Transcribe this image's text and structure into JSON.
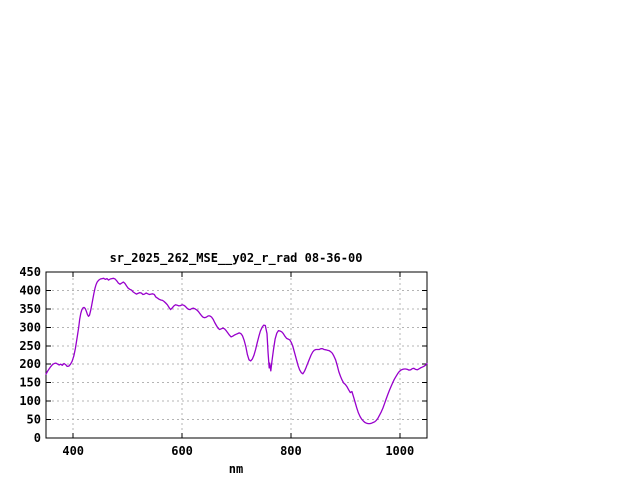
{
  "chart_data": {
    "type": "line",
    "title": "sr_2025_262_MSE__y02_r_rad 08-36-00",
    "xlabel": "nm",
    "ylabel": "",
    "xlim": [
      350,
      1050
    ],
    "ylim": [
      0,
      450
    ],
    "x_ticks": [
      400,
      600,
      800,
      1000
    ],
    "y_ticks": [
      0,
      50,
      100,
      150,
      200,
      250,
      300,
      350,
      400,
      450
    ],
    "grid": true,
    "legend_position": "none",
    "colors": {
      "line": "#9800cc",
      "grid": "#b4b4b4",
      "axis": "#000000",
      "text": "#000000",
      "background": "#ffffff"
    },
    "series": [
      {
        "name": "sr_2025_262_MSE__y02_r_rad 08-36-00",
        "x": [
          350,
          353,
          356,
          359,
          362,
          365,
          368,
          371,
          374,
          377,
          380,
          383,
          386,
          389,
          392,
          395,
          398,
          401,
          404,
          407,
          410,
          412,
          414,
          416,
          418,
          420,
          422,
          424,
          426,
          428,
          430,
          432,
          434,
          436,
          438,
          440,
          442,
          444,
          447,
          450,
          453,
          456,
          459,
          462,
          465,
          468,
          471,
          474,
          477,
          480,
          483,
          486,
          489,
          492,
          495,
          498,
          501,
          504,
          507,
          510,
          513,
          516,
          519,
          522,
          525,
          528,
          531,
          534,
          537,
          540,
          543,
          546,
          549,
          552,
          555,
          558,
          561,
          564,
          567,
          570,
          573,
          576,
          579,
          582,
          585,
          588,
          591,
          594,
          597,
          600,
          603,
          606,
          609,
          612,
          615,
          618,
          621,
          624,
          627,
          630,
          633,
          636,
          639,
          642,
          645,
          648,
          651,
          654,
          657,
          660,
          663,
          666,
          669,
          672,
          675,
          678,
          681,
          684,
          687,
          690,
          693,
          696,
          699,
          702,
          705,
          708,
          711,
          714,
          717,
          720,
          723,
          726,
          729,
          732,
          735,
          738,
          741,
          744,
          747,
          750,
          753,
          756,
          758,
          760,
          761,
          763,
          765,
          768,
          771,
          774,
          777,
          780,
          783,
          786,
          789,
          792,
          795,
          798,
          801,
          804,
          807,
          810,
          813,
          816,
          819,
          822,
          825,
          828,
          831,
          834,
          837,
          840,
          843,
          846,
          849,
          852,
          855,
          858,
          861,
          864,
          867,
          870,
          873,
          876,
          879,
          882,
          885,
          888,
          891,
          894,
          897,
          900,
          903,
          906,
          909,
          912,
          915,
          918,
          921,
          924,
          927,
          930,
          933,
          936,
          939,
          942,
          945,
          948,
          951,
          954,
          957,
          960,
          963,
          966,
          969,
          972,
          975,
          978,
          981,
          984,
          987,
          990,
          993,
          996,
          999,
          1002,
          1005,
          1008,
          1011,
          1014,
          1017,
          1020,
          1023,
          1026,
          1029,
          1032,
          1035,
          1038,
          1041,
          1044,
          1047,
          1050
        ],
        "y": [
          173,
          181,
          188,
          194,
          199,
          202,
          203,
          201,
          198,
          200,
          197,
          202,
          199,
          194,
          195,
          200,
          208,
          222,
          243,
          270,
          300,
          322,
          338,
          348,
          353,
          354,
          351,
          344,
          335,
          330,
          333,
          345,
          360,
          376,
          392,
          406,
          416,
          423,
          428,
          431,
          432,
          433,
          430,
          432,
          428,
          431,
          432,
          433,
          431,
          426,
          420,
          417,
          420,
          423,
          419,
          412,
          406,
          403,
          401,
          396,
          393,
          390,
          392,
          394,
          393,
          389,
          390,
          393,
          391,
          389,
          390,
          391,
          389,
          382,
          379,
          376,
          374,
          373,
          370,
          366,
          361,
          354,
          348,
          353,
          358,
          361,
          360,
          358,
          359,
          361,
          360,
          357,
          352,
          349,
          348,
          351,
          352,
          350,
          347,
          343,
          337,
          331,
          327,
          326,
          328,
          331,
          331,
          328,
          322,
          313,
          305,
          298,
          294,
          296,
          298,
          296,
          291,
          285,
          279,
          274,
          276,
          279,
          281,
          283,
          285,
          283,
          277,
          265,
          248,
          226,
          212,
          209,
          214,
          224,
          240,
          258,
          275,
          290,
          300,
          306,
          305,
          283,
          230,
          190,
          203,
          182,
          207,
          240,
          268,
          284,
          291,
          290,
          288,
          283,
          276,
          270,
          268,
          266,
          258,
          246,
          230,
          213,
          197,
          185,
          177,
          174,
          181,
          192,
          203,
          214,
          225,
          233,
          238,
          240,
          240,
          240,
          242,
          242,
          240,
          239,
          238,
          237,
          234,
          230,
          222,
          212,
          197,
          180,
          167,
          157,
          149,
          145,
          139,
          131,
          123,
          126,
          112,
          96,
          81,
          68,
          58,
          51,
          46,
          42,
          40,
          39,
          39,
          40,
          42,
          44,
          48,
          54,
          62,
          71,
          81,
          93,
          106,
          118,
          129,
          140,
          150,
          159,
          167,
          174,
          180,
          184,
          186,
          187,
          187,
          186,
          184,
          185,
          188,
          189,
          186,
          185,
          187,
          190,
          192,
          194,
          197,
          202
        ]
      }
    ]
  }
}
